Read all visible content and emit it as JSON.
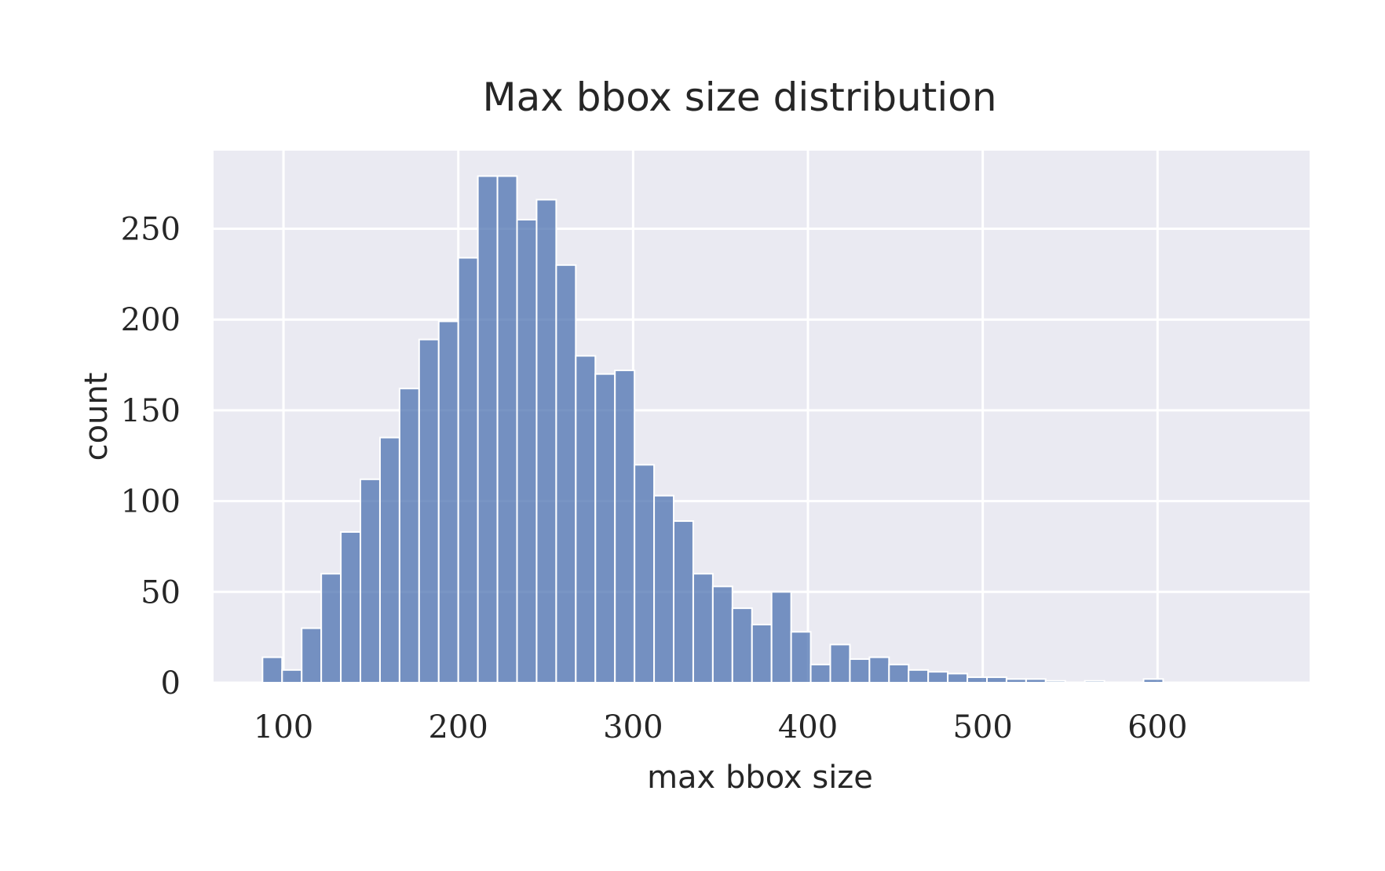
{
  "chart_data": {
    "type": "bar",
    "title": "Max bbox size distribution",
    "xlabel": "max bbox size",
    "ylabel": "count",
    "xlim": [
      60,
      687
    ],
    "ylim": [
      0,
      293
    ],
    "x_ticks": [
      100,
      200,
      300,
      400,
      500,
      600
    ],
    "y_ticks": [
      0,
      50,
      100,
      150,
      200,
      250
    ],
    "grid": true,
    "bar_color": "#4c72b0",
    "background_color": "#eaeaf2",
    "bin_width": 11.2,
    "bin_start": 88,
    "values": [
      14,
      7,
      30,
      60,
      83,
      112,
      135,
      162,
      189,
      199,
      234,
      279,
      279,
      255,
      266,
      230,
      180,
      170,
      172,
      120,
      103,
      89,
      60,
      53,
      41,
      32,
      50,
      28,
      10,
      21,
      13,
      14,
      10,
      7,
      6,
      5,
      3,
      3,
      2,
      2,
      1,
      0,
      1,
      0,
      0,
      2,
      0,
      0,
      0,
      0,
      0,
      0,
      0,
      0,
      0,
      0,
      0,
      0,
      0,
      0
    ]
  }
}
